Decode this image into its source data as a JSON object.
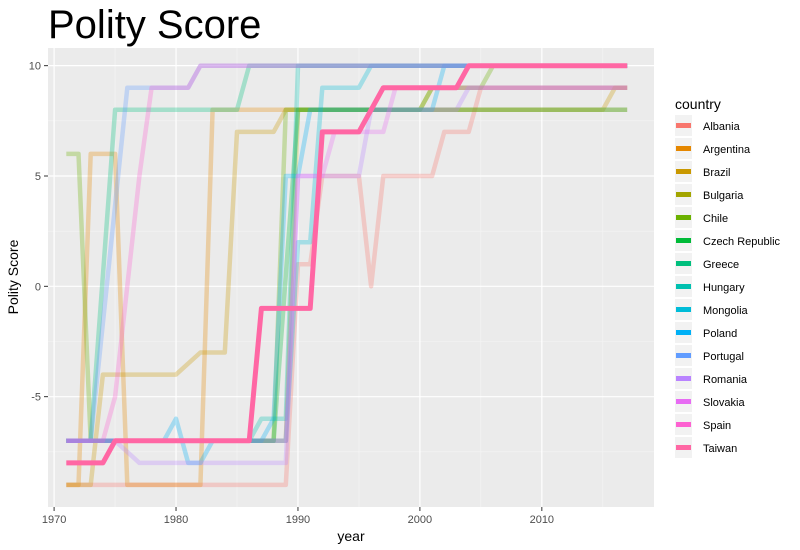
{
  "chart_data": {
    "type": "line",
    "title": "Polity Score",
    "xlabel": "year",
    "ylabel": "Polity Score",
    "xlim": [
      1969.5,
      2019.2
    ],
    "ylim": [
      -10,
      10.8
    ],
    "x_ticks": [
      1970,
      1980,
      1990,
      2000,
      2010
    ],
    "y_ticks": [
      -5,
      0,
      5,
      10
    ],
    "grid": true,
    "background": "#ebebeb",
    "legend_title": "country",
    "legend_position": "right",
    "highlight_series": "Taiwan",
    "series": [
      {
        "name": "Albania",
        "color": "#F8766D",
        "points": [
          [
            1971,
            -9
          ],
          [
            1989,
            -9
          ],
          [
            1990,
            1
          ],
          [
            1991,
            1
          ],
          [
            1992,
            5
          ],
          [
            1995,
            5
          ],
          [
            1996,
            0
          ],
          [
            1997,
            5
          ],
          [
            2001,
            5
          ],
          [
            2002,
            7
          ],
          [
            2004,
            7
          ],
          [
            2005,
            9
          ],
          [
            2017,
            9
          ]
        ]
      },
      {
        "name": "Argentina",
        "color": "#E58700",
        "points": [
          [
            1971,
            -9
          ],
          [
            1972,
            -9
          ],
          [
            1973,
            6
          ],
          [
            1975,
            6
          ],
          [
            1976,
            -9
          ],
          [
            1982,
            -9
          ],
          [
            1983,
            8
          ],
          [
            2017,
            8
          ]
        ]
      },
      {
        "name": "Brazil",
        "color": "#C99800",
        "points": [
          [
            1971,
            -9
          ],
          [
            1973,
            -9
          ],
          [
            1974,
            -4
          ],
          [
            1980,
            -4
          ],
          [
            1982,
            -3
          ],
          [
            1984,
            -3
          ],
          [
            1985,
            7
          ],
          [
            1988,
            7
          ],
          [
            1989,
            8
          ],
          [
            2015,
            8
          ],
          [
            2016,
            9
          ],
          [
            2017,
            9
          ]
        ]
      },
      {
        "name": "Bulgaria",
        "color": "#A3A500",
        "points": [
          [
            1971,
            -7
          ],
          [
            1989,
            -7
          ],
          [
            1990,
            8
          ],
          [
            2000,
            8
          ],
          [
            2001,
            9
          ],
          [
            2017,
            9
          ]
        ]
      },
      {
        "name": "Chile",
        "color": "#6BB100",
        "points": [
          [
            1971,
            6
          ],
          [
            1972,
            6
          ],
          [
            1973,
            -7
          ],
          [
            1988,
            -7
          ],
          [
            1989,
            8
          ],
          [
            2000,
            8
          ],
          [
            2001,
            9
          ],
          [
            2005,
            9
          ],
          [
            2006,
            10
          ],
          [
            2017,
            10
          ]
        ]
      },
      {
        "name": "Czech Republic",
        "color": "#00BA38",
        "points": [
          [
            1971,
            -7
          ],
          [
            1988,
            -7
          ],
          [
            1990,
            8
          ],
          [
            1993,
            8
          ],
          [
            2017,
            8
          ]
        ]
      },
      {
        "name": "Greece",
        "color": "#00BF7D",
        "points": [
          [
            1971,
            -7
          ],
          [
            1973,
            -7
          ],
          [
            1975,
            8
          ],
          [
            1985,
            8
          ],
          [
            1986,
            10
          ],
          [
            2017,
            10
          ]
        ]
      },
      {
        "name": "Hungary",
        "color": "#00C0AF",
        "points": [
          [
            1971,
            -7
          ],
          [
            1986,
            -7
          ],
          [
            1987,
            -6
          ],
          [
            1989,
            -6
          ],
          [
            1990,
            10
          ],
          [
            2017,
            10
          ]
        ]
      },
      {
        "name": "Mongolia",
        "color": "#00BCD8",
        "points": [
          [
            1971,
            -7
          ],
          [
            1988,
            -7
          ],
          [
            1989,
            -7
          ],
          [
            1990,
            2
          ],
          [
            1991,
            2
          ],
          [
            1992,
            9
          ],
          [
            1995,
            9
          ],
          [
            1996,
            10
          ],
          [
            2017,
            10
          ]
        ]
      },
      {
        "name": "Poland",
        "color": "#00B0F6",
        "points": [
          [
            1971,
            -7
          ],
          [
            1979,
            -7
          ],
          [
            1980,
            -6
          ],
          [
            1981,
            -8
          ],
          [
            1982,
            -8
          ],
          [
            1983,
            -7
          ],
          [
            1987,
            -7
          ],
          [
            1988,
            -6
          ],
          [
            1989,
            5
          ],
          [
            1990,
            5
          ],
          [
            1991,
            8
          ],
          [
            2001,
            8
          ],
          [
            2002,
            10
          ],
          [
            2017,
            10
          ]
        ]
      },
      {
        "name": "Portugal",
        "color": "#619CFF",
        "points": [
          [
            1971,
            -7
          ],
          [
            1973,
            -7
          ],
          [
            1976,
            9
          ],
          [
            1981,
            9
          ],
          [
            1982,
            10
          ],
          [
            2017,
            10
          ]
        ]
      },
      {
        "name": "Romania",
        "color": "#B983FF",
        "points": [
          [
            1971,
            -7
          ],
          [
            1975,
            -7
          ],
          [
            1977,
            -8
          ],
          [
            1988,
            -8
          ],
          [
            1989,
            -8
          ],
          [
            1990,
            5
          ],
          [
            1995,
            5
          ],
          [
            1996,
            8
          ],
          [
            2003,
            8
          ],
          [
            2004,
            9
          ],
          [
            2017,
            9
          ]
        ]
      },
      {
        "name": "Slovakia",
        "color": "#E76BF3",
        "points": [
          [
            1971,
            -7
          ],
          [
            1989,
            -7
          ],
          [
            1990,
            5
          ],
          [
            1992,
            5
          ],
          [
            1993,
            7
          ],
          [
            1997,
            7
          ],
          [
            1998,
            9
          ],
          [
            2017,
            9
          ]
        ]
      },
      {
        "name": "Spain",
        "color": "#FD61D1",
        "points": [
          [
            1971,
            -7
          ],
          [
            1974,
            -7
          ],
          [
            1975,
            -5
          ],
          [
            1977,
            5
          ],
          [
            1978,
            9
          ],
          [
            1981,
            9
          ],
          [
            1982,
            10
          ],
          [
            2017,
            10
          ]
        ]
      },
      {
        "name": "Taiwan",
        "color": "#FF67A4",
        "points": [
          [
            1971,
            -8
          ],
          [
            1974,
            -8
          ],
          [
            1975,
            -7
          ],
          [
            1986,
            -7
          ],
          [
            1987,
            -1
          ],
          [
            1991,
            -1
          ],
          [
            1992,
            7
          ],
          [
            1995,
            7
          ],
          [
            1997,
            9
          ],
          [
            2003,
            9
          ],
          [
            2004,
            10
          ],
          [
            2017,
            10
          ]
        ]
      }
    ]
  }
}
